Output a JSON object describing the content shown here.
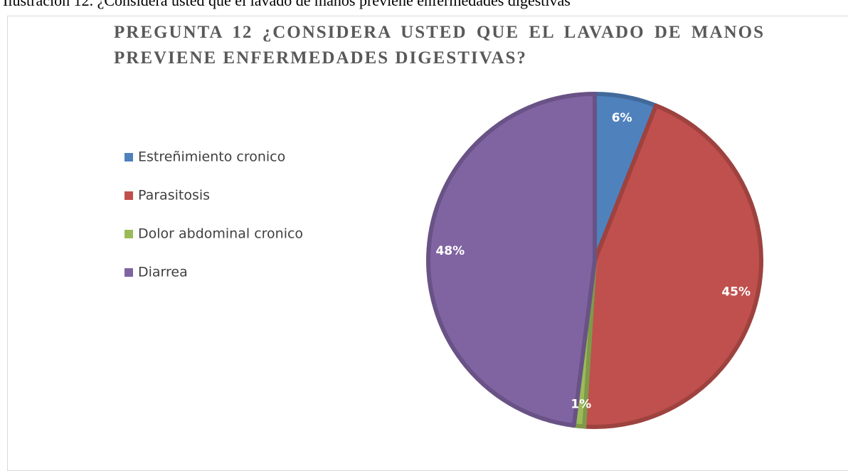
{
  "caption": "Ilustración 12. ¿Considera usted que el lavado de manos previene enfermedades digestivas",
  "chart_data": {
    "type": "pie",
    "title": "PREGUNTA 12 ¿CONSIDERA USTED QUE EL LAVADO DE MANOS PREVIENE ENFERMEDADES DIGESTIVAS?",
    "categories": [
      "Estreñimiento cronico",
      "Parasitosis",
      "Dolor abdominal cronico",
      "Diarrea"
    ],
    "values": [
      6,
      45,
      1,
      48
    ],
    "value_labels": [
      "6%",
      "45%",
      "1%",
      "48%"
    ],
    "colors": [
      "#4f81bd",
      "#c0504d",
      "#9bbb59",
      "#8064a2"
    ],
    "legend": "left"
  }
}
